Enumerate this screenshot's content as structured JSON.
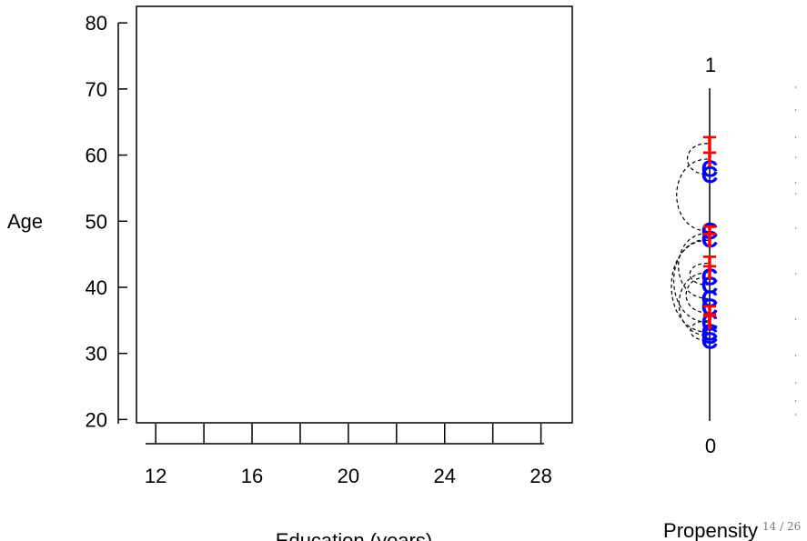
{
  "slide": {
    "page_number": "14 / 26"
  },
  "chart_data": [
    {
      "type": "scatter",
      "title": "",
      "xlabel": "Education (years)",
      "ylabel": "Age",
      "xlim": [
        11.2,
        29.3
      ],
      "ylim": [
        19.5,
        82.5
      ],
      "x_ticks": [
        12,
        16,
        20,
        24,
        28
      ],
      "x_minor_ticks": [
        14,
        18,
        22,
        26
      ],
      "y_ticks": [
        20,
        30,
        40,
        50,
        60,
        70,
        80
      ],
      "points": []
    },
    {
      "type": "scatter",
      "title": "",
      "xlabel": "Propensity Score",
      "ylabel": "",
      "ylim": [
        0,
        1
      ],
      "y_ticks": [
        0,
        1
      ],
      "colors": {
        "treated": "#ff0000",
        "control": "#0000ff",
        "match_line": "#000000"
      },
      "treated_marker": "T",
      "control_marker": "C",
      "treated": [
        0.834,
        0.787,
        0.564,
        0.543,
        0.474,
        0.446,
        0.325,
        0.301,
        0.297
      ],
      "control": [
        0.758,
        0.741,
        0.571,
        0.546,
        0.433,
        0.409,
        0.368,
        0.343,
        0.296,
        0.267,
        0.257,
        0.242
      ],
      "matches": [
        [
          0.834,
          0.741
        ],
        [
          0.787,
          0.571
        ],
        [
          0.564,
          0.368
        ],
        [
          0.543,
          0.267
        ],
        [
          0.474,
          0.409
        ],
        [
          0.446,
          0.257
        ],
        [
          0.325,
          0.433
        ],
        [
          0.301,
          0.242
        ],
        [
          0.297,
          0.546
        ]
      ]
    }
  ]
}
